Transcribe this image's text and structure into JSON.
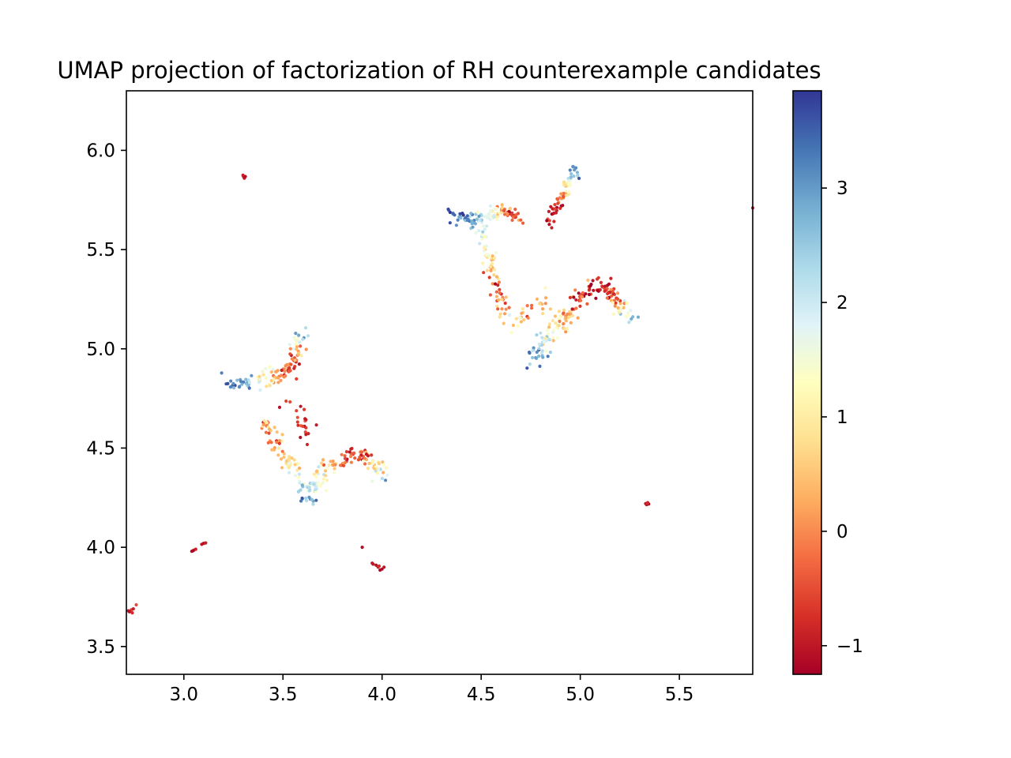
{
  "chart_data": {
    "type": "scatter",
    "title": "UMAP projection of factorization of RH counterexample candidates",
    "xlabel": "",
    "ylabel": "",
    "xlim": [
      2.71,
      5.87
    ],
    "ylim": [
      3.36,
      6.3
    ],
    "x_ticks": [
      3.0,
      3.5,
      4.0,
      4.5,
      5.0,
      5.5
    ],
    "x_tick_labels": [
      "3.0",
      "3.5",
      "4.0",
      "4.5",
      "5.0",
      "5.5"
    ],
    "y_ticks": [
      3.5,
      4.0,
      4.5,
      5.0,
      5.5,
      6.0
    ],
    "y_tick_labels": [
      "3.5",
      "4.0",
      "4.5",
      "5.0",
      "5.5",
      "6.0"
    ],
    "grid": false,
    "colorbar": {
      "colormap": "RdYlBu",
      "range": [
        -1.25,
        3.85
      ],
      "ticks": [
        -1,
        0,
        1,
        2,
        3
      ],
      "tick_labels": [
        "−1",
        "0",
        "1",
        "2",
        "3"
      ]
    },
    "clusters": [
      {
        "points": [
          [
            3.3,
            5.87,
            -1.1
          ],
          [
            3.305,
            5.86,
            -1.0
          ],
          [
            3.298,
            5.875,
            -0.9
          ],
          [
            3.31,
            5.868,
            -1.1
          ]
        ]
      },
      {
        "points": [
          [
            2.72,
            3.68,
            -1.0
          ],
          [
            2.735,
            3.685,
            -0.7
          ],
          [
            2.745,
            3.69,
            -0.9
          ],
          [
            2.76,
            3.71,
            -0.5
          ],
          [
            2.725,
            3.675,
            -1.1
          ],
          [
            2.74,
            3.67,
            -0.8
          ]
        ]
      },
      {
        "points": [
          [
            3.04,
            3.98,
            -1.1
          ],
          [
            3.05,
            3.985,
            -1.0
          ],
          [
            3.06,
            3.99,
            -0.9
          ],
          [
            3.09,
            4.015,
            -1.0
          ],
          [
            3.1,
            4.02,
            -1.1
          ],
          [
            3.11,
            4.022,
            -0.9
          ],
          [
            3.045,
            3.982,
            -1.2
          ]
        ]
      },
      {
        "points": [
          [
            3.9,
            4.0,
            -1.1
          ],
          [
            3.95,
            3.92,
            -1.0
          ],
          [
            3.97,
            3.91,
            -1.1
          ],
          [
            3.98,
            3.9,
            -0.9
          ],
          [
            4.0,
            3.89,
            -1.1
          ],
          [
            4.01,
            3.9,
            -1.0
          ],
          [
            3.99,
            3.885,
            -1.2
          ],
          [
            3.985,
            3.905,
            -0.8
          ],
          [
            3.955,
            3.915,
            -1.0
          ]
        ]
      },
      {
        "points": [
          [
            5.33,
            4.22,
            -1.1
          ],
          [
            5.335,
            4.215,
            -1.0
          ],
          [
            5.34,
            4.225,
            -0.9
          ],
          [
            5.345,
            4.218,
            -1.1
          ],
          [
            5.338,
            4.222,
            -0.8
          ]
        ]
      },
      {
        "points": [
          [
            5.87,
            5.71,
            -1.0
          ]
        ]
      },
      {
        "path": [
          [
            3.21,
            4.83
          ],
          [
            3.28,
            4.82
          ],
          [
            3.35,
            4.84
          ],
          [
            3.43,
            4.86
          ],
          [
            3.5,
            4.87
          ],
          [
            3.55,
            4.92
          ],
          [
            3.57,
            4.98
          ],
          [
            3.6,
            5.08
          ]
        ],
        "values": [
          3.6,
          3.3,
          2.3,
          0.8,
          -0.3,
          -0.8,
          0.2,
          3.0
        ],
        "count": 120,
        "spread": 0.022,
        "noise": 0.7,
        "seed": 11
      },
      {
        "path": [
          [
            3.4,
            4.64
          ],
          [
            3.45,
            4.56
          ],
          [
            3.5,
            4.47
          ],
          [
            3.56,
            4.38
          ],
          [
            3.6,
            4.31
          ],
          [
            3.63,
            4.23
          ]
        ],
        "values": [
          0.2,
          0.0,
          0.4,
          1.0,
          2.2,
          3.2
        ],
        "count": 80,
        "spread": 0.02,
        "noise": 0.8,
        "seed": 23
      },
      {
        "path": [
          [
            3.63,
            4.23
          ],
          [
            3.67,
            4.33
          ],
          [
            3.72,
            4.4
          ],
          [
            3.79,
            4.44
          ],
          [
            3.86,
            4.46
          ],
          [
            3.93,
            4.44
          ],
          [
            3.98,
            4.39
          ],
          [
            4.02,
            4.36
          ]
        ],
        "values": [
          3.0,
          1.6,
          0.6,
          -0.3,
          -0.8,
          -0.2,
          1.6,
          3.0
        ],
        "count": 130,
        "spread": 0.024,
        "noise": 0.9,
        "seed": 37
      },
      {
        "path": [
          [
            3.55,
            4.72
          ],
          [
            3.58,
            4.65
          ],
          [
            3.62,
            4.57
          ],
          [
            3.65,
            4.52
          ]
        ],
        "values": [
          -0.8,
          -0.9,
          -0.7,
          -1.0
        ],
        "count": 22,
        "spread": 0.03,
        "noise": 0.5,
        "seed": 41
      },
      {
        "path": [
          [
            4.34,
            5.69
          ],
          [
            4.42,
            5.65
          ],
          [
            4.5,
            5.66
          ],
          [
            4.58,
            5.68
          ],
          [
            4.65,
            5.7
          ],
          [
            4.7,
            5.64
          ]
        ],
        "values": [
          3.7,
          3.2,
          2.2,
          1.0,
          -0.6,
          -0.2
        ],
        "count": 110,
        "spread": 0.018,
        "noise": 0.7,
        "seed": 53
      },
      {
        "path": [
          [
            4.5,
            5.6
          ],
          [
            4.53,
            5.5
          ],
          [
            4.56,
            5.4
          ],
          [
            4.58,
            5.32
          ],
          [
            4.6,
            5.25
          ],
          [
            4.62,
            5.18
          ]
        ],
        "values": [
          2.0,
          1.3,
          0.4,
          -0.7,
          -0.2,
          0.6
        ],
        "count": 70,
        "spread": 0.022,
        "noise": 0.9,
        "seed": 61
      },
      {
        "path": [
          [
            4.85,
            5.64
          ],
          [
            4.88,
            5.72
          ],
          [
            4.91,
            5.78
          ],
          [
            4.95,
            5.85
          ],
          [
            4.97,
            5.91
          ]
        ],
        "values": [
          -0.9,
          -1.0,
          0.2,
          1.8,
          3.2
        ],
        "count": 65,
        "spread": 0.018,
        "noise": 0.6,
        "seed": 71
      },
      {
        "path": [
          [
            4.76,
            4.92
          ],
          [
            4.8,
            5.0
          ],
          [
            4.85,
            5.07
          ],
          [
            4.91,
            5.14
          ],
          [
            4.96,
            5.21
          ],
          [
            5.01,
            5.27
          ],
          [
            5.06,
            5.32
          ],
          [
            5.11,
            5.32
          ],
          [
            5.16,
            5.28
          ],
          [
            5.2,
            5.22
          ],
          [
            5.24,
            5.16
          ],
          [
            5.26,
            5.14
          ]
        ],
        "values": [
          3.3,
          2.5,
          1.4,
          0.6,
          -0.2,
          -0.8,
          -1.0,
          -0.9,
          -0.6,
          0.6,
          2.2,
          3.2
        ],
        "count": 190,
        "spread": 0.022,
        "noise": 0.9,
        "seed": 83
      },
      {
        "path": [
          [
            4.66,
            5.1
          ],
          [
            4.7,
            5.15
          ],
          [
            4.75,
            5.2
          ],
          [
            4.8,
            5.24
          ],
          [
            4.85,
            5.22
          ]
        ],
        "values": [
          1.2,
          0.5,
          -0.5,
          0.3,
          0.9
        ],
        "count": 30,
        "spread": 0.03,
        "noise": 0.8,
        "seed": 97
      }
    ]
  }
}
